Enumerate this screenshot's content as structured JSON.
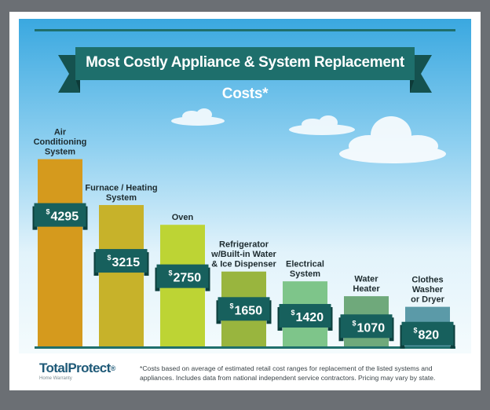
{
  "title": "Most Costly Appliance & System Replacement Costs*",
  "colors": {
    "background": "#6b6f74",
    "sky_top": "#3aa8e0",
    "ribbon": "#1e6f6c",
    "tag": "#17605d",
    "bars": [
      "#d59a1d",
      "#c7b22a",
      "#bdd434",
      "#99b53e",
      "#7ec58a",
      "#6fa97b",
      "#5b9aa8"
    ]
  },
  "chart_data": {
    "type": "bar",
    "title": "Most Costly Appliance & System Replacement Costs*",
    "categories": [
      [
        "Air",
        "Conditioning",
        "System"
      ],
      [
        "Furnace / Heating",
        "System"
      ],
      [
        "Oven"
      ],
      [
        "Refrigerator",
        "w/Built-in Water",
        "& Ice Dispenser"
      ],
      [
        "Electrical",
        "System"
      ],
      [
        "Water",
        "Heater"
      ],
      [
        "Clothes",
        "Washer",
        "or Dryer"
      ]
    ],
    "values": [
      4295,
      3215,
      2750,
      1650,
      1420,
      1070,
      820
    ],
    "value_labels": [
      "4295",
      "3215",
      "2750",
      "1650",
      "1420",
      "1070",
      "820"
    ],
    "currency_symbol": "$",
    "ylim": [
      0,
      4500
    ],
    "grid": false,
    "legend": "none"
  },
  "footer": {
    "logo_name": "TotalProtect",
    "logo_mark": "®",
    "logo_tagline": "Home Warranty",
    "footnote": "*Costs based on average of estimated retail cost ranges for replacement of the listed systems and appliances. Includes data from national independent service contractors. Pricing may vary by state."
  }
}
